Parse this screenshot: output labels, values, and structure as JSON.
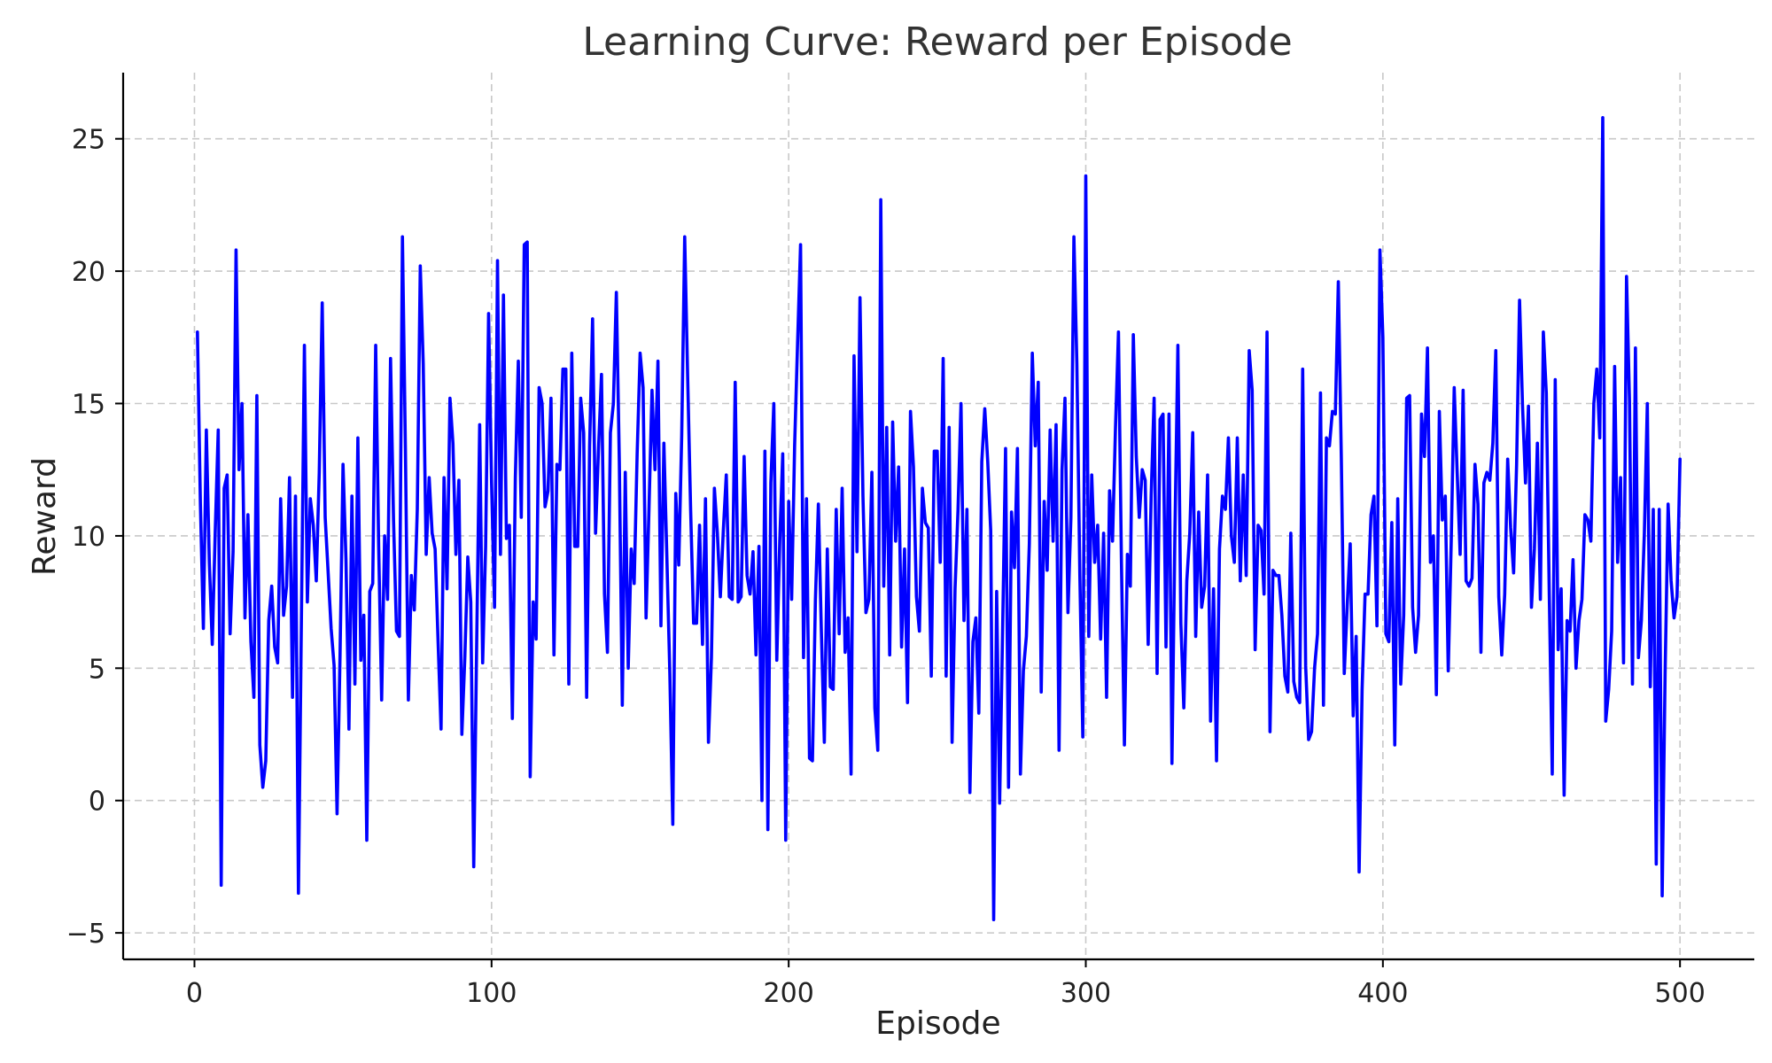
{
  "chart_data": {
    "type": "line",
    "title": "Learning Curve: Reward per Episode",
    "xlabel": "Episode",
    "ylabel": "Reward",
    "xlim": [
      -24,
      525
    ],
    "ylim": [
      -6,
      27.5
    ],
    "xticks": [
      0,
      100,
      200,
      300,
      400,
      500
    ],
    "yticks": [
      -5,
      0,
      5,
      10,
      15,
      20,
      25
    ],
    "xtick_labels": [
      "0",
      "100",
      "200",
      "300",
      "400",
      "500"
    ],
    "ytick_labels": [
      "−5",
      "0",
      "5",
      "10",
      "15",
      "20",
      "25"
    ],
    "grid": true,
    "legend": "none",
    "series": [
      {
        "color": "#0000ff",
        "x_start": 1,
        "x_step": 1,
        "values": [
          17.7,
          11.2,
          6.5,
          14.0,
          9.0,
          5.9,
          10.2,
          14.0,
          -3.2,
          11.8,
          12.3,
          6.3,
          9.4,
          20.8,
          12.5,
          15.0,
          6.9,
          10.8,
          6.0,
          3.9,
          15.3,
          2.1,
          0.5,
          1.5,
          6.8,
          8.1,
          5.8,
          5.2,
          11.4,
          7.0,
          8.1,
          12.2,
          3.9,
          11.5,
          -3.5,
          6.9,
          17.2,
          7.5,
          11.4,
          10.4,
          8.3,
          12.4,
          18.8,
          10.7,
          8.6,
          6.5,
          5.1,
          -0.5,
          5.5,
          12.7,
          9.1,
          2.7,
          11.5,
          4.4,
          13.7,
          5.3,
          7.0,
          -1.5,
          7.9,
          8.2,
          17.2,
          9.6,
          3.8,
          10.0,
          7.6,
          16.7,
          10.6,
          6.4,
          6.2,
          21.3,
          13.3,
          3.8,
          8.5,
          7.2,
          11.0,
          20.2,
          16.5,
          9.3,
          12.2,
          10.1,
          9.5,
          6.0,
          2.7,
          12.2,
          8.0,
          15.2,
          13.5,
          9.3,
          12.1,
          2.5,
          5.4,
          9.2,
          7.5,
          -2.5,
          6.0,
          14.2,
          5.2,
          9.6,
          18.4,
          12.0,
          7.3,
          20.4,
          9.3,
          19.1,
          9.9,
          10.4,
          3.1,
          12.2,
          16.6,
          10.7,
          21.0,
          21.1,
          0.9,
          7.5,
          6.1,
          15.6,
          15.0,
          11.1,
          11.7,
          15.2,
          5.5,
          12.7,
          12.5,
          16.3,
          16.3,
          4.4,
          16.9,
          9.6,
          9.6,
          15.2,
          13.9,
          3.9,
          13.4,
          18.2,
          10.1,
          13.3,
          16.1,
          7.8,
          5.6,
          13.9,
          15.0,
          19.2,
          12.8,
          3.6,
          12.4,
          5.0,
          9.5,
          8.2,
          13.1,
          16.9,
          15.6,
          6.9,
          11.1,
          15.5,
          12.5,
          16.6,
          6.6,
          13.5,
          9.2,
          4.8,
          -0.9,
          11.6,
          8.9,
          13.8,
          21.3,
          16.0,
          11.0,
          6.7,
          6.7,
          10.4,
          5.9,
          11.4,
          2.2,
          5.4,
          11.8,
          10.1,
          7.7,
          10.2,
          12.3,
          7.7,
          7.6,
          15.8,
          7.5,
          7.7,
          13.0,
          8.5,
          7.8,
          9.4,
          5.5,
          9.6,
          0.0,
          13.2,
          -1.1,
          12.0,
          15.0,
          5.3,
          9.8,
          13.1,
          -1.5,
          11.3,
          7.6,
          13.4,
          17.3,
          21.0,
          5.4,
          11.4,
          1.6,
          1.5,
          7.6,
          11.2,
          6.4,
          2.2,
          9.5,
          4.3,
          4.2,
          11.0,
          6.3,
          11.8,
          5.6,
          6.9,
          1.0,
          16.8,
          9.4,
          19.0,
          11.5,
          7.1,
          7.6,
          12.4,
          3.5,
          1.9,
          22.7,
          8.1,
          14.1,
          5.5,
          14.3,
          9.8,
          12.6,
          5.8,
          9.5,
          3.7,
          14.7,
          12.6,
          7.7,
          6.4,
          11.8,
          10.5,
          10.3,
          4.7,
          13.2,
          13.2,
          9.0,
          16.7,
          4.7,
          14.1,
          2.2,
          8.0,
          11.0,
          15.0,
          6.8,
          11.0,
          0.3,
          6.0,
          6.9,
          3.3,
          12.8,
          14.8,
          12.8,
          10.2,
          -4.5,
          7.9,
          -0.1,
          6.4,
          13.3,
          0.5,
          10.9,
          8.8,
          13.3,
          1.0,
          4.9,
          6.2,
          9.7,
          16.9,
          13.4,
          15.8,
          4.1,
          11.3,
          8.7,
          14.0,
          9.8,
          14.2,
          1.9,
          12.5,
          15.2,
          7.1,
          10.7,
          21.3,
          16.5,
          8.5,
          2.4,
          23.6,
          6.2,
          12.3,
          9.0,
          10.4,
          6.1,
          10.1,
          3.9,
          11.7,
          9.8,
          14.1,
          17.7,
          9.0,
          2.1,
          9.3,
          8.1,
          17.6,
          13.0,
          10.7,
          12.5,
          12.1,
          5.9,
          11.5,
          15.2,
          4.8,
          14.4,
          14.6,
          5.8,
          14.6,
          1.4,
          10.1,
          17.2,
          6.7,
          3.5,
          8.3,
          10.1,
          13.9,
          6.2,
          10.9,
          7.3,
          8.1,
          12.3,
          3.0,
          8.0,
          1.5,
          9.5,
          11.5,
          11.0,
          13.7,
          10.0,
          9.0,
          13.7,
          8.3,
          12.3,
          8.5,
          17.0,
          15.5,
          5.7,
          10.4,
          10.2,
          7.8,
          17.7,
          2.6,
          8.7,
          8.5,
          8.5,
          7.0,
          4.7,
          4.1,
          10.1,
          4.5,
          3.9,
          3.7,
          16.3,
          5.1,
          2.3,
          2.6,
          5.0,
          6.3,
          15.4,
          3.6,
          13.7,
          13.4,
          14.7,
          14.6,
          19.6,
          13.0,
          4.8,
          7.4,
          9.7,
          3.2,
          6.2,
          -2.7,
          4.2,
          7.8,
          7.8,
          10.8,
          11.5,
          6.6,
          20.8,
          17.5,
          6.3,
          6.0,
          10.5,
          2.1,
          11.4,
          4.4,
          7.0,
          15.2,
          15.3,
          7.3,
          5.6,
          7.0,
          14.6,
          13.0,
          17.1,
          9.0,
          10.0,
          4.0,
          14.7,
          10.6,
          11.5,
          4.9,
          9.8,
          15.6,
          12.4,
          9.3,
          15.5,
          8.3,
          8.1,
          8.4,
          12.7,
          11.2,
          5.6,
          12.0,
          12.4,
          12.1,
          13.5,
          17.0,
          7.7,
          5.5,
          7.8,
          12.9,
          10.3,
          8.6,
          12.7,
          18.9,
          14.9,
          12.0,
          14.9,
          7.3,
          9.5,
          13.5,
          7.6,
          17.7,
          15.4,
          7.8,
          1.0,
          15.9,
          5.7,
          8.0,
          0.2,
          6.8,
          6.4,
          9.1,
          5.0,
          6.8,
          7.6,
          10.8,
          10.6,
          9.8,
          15.0,
          16.3,
          13.7,
          25.8,
          3.0,
          4.2,
          6.4,
          16.4,
          9.0,
          12.2,
          5.2,
          19.8,
          15.1,
          4.4,
          17.1,
          5.4,
          6.8,
          10.1,
          15.0,
          4.3,
          11.0,
          -2.4,
          11.0,
          -3.6,
          4.9,
          11.2,
          8.3,
          6.9,
          7.7,
          12.9
        ]
      }
    ]
  }
}
